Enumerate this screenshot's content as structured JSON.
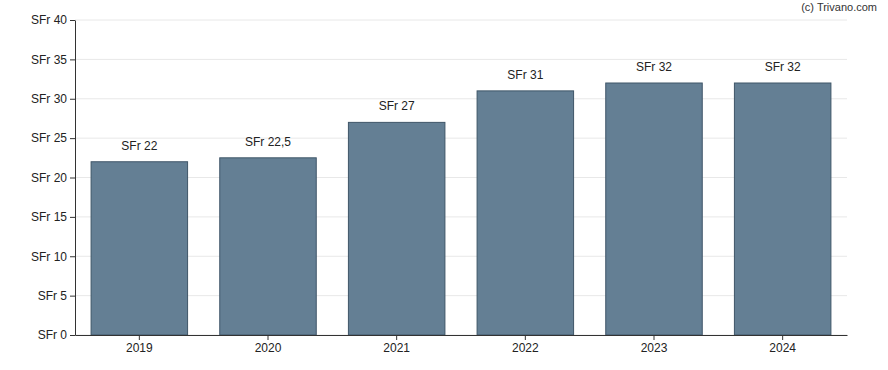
{
  "chart_data": {
    "type": "bar",
    "categories": [
      "2019",
      "2020",
      "2021",
      "2022",
      "2023",
      "2024"
    ],
    "values": [
      22,
      22.5,
      27,
      31,
      32,
      32
    ],
    "value_labels": [
      "SFr 22",
      "SFr 22,5",
      "SFr 27",
      "SFr 31",
      "SFr 32",
      "SFr 32"
    ],
    "data_labels": true,
    "color": "#647f94",
    "ylim": [
      0,
      40
    ],
    "yticks": [
      {
        "value": 0,
        "label": "SFr 0"
      },
      {
        "value": 5,
        "label": "SFr 5"
      },
      {
        "value": 10,
        "label": "SFr 10"
      },
      {
        "value": 15,
        "label": "SFr 15"
      },
      {
        "value": 20,
        "label": "SFr 20"
      },
      {
        "value": 25,
        "label": "SFr 25"
      },
      {
        "value": 30,
        "label": "SFr 30"
      },
      {
        "value": 35,
        "label": "SFr 35"
      },
      {
        "value": 40,
        "label": "SFr 40"
      }
    ],
    "grid": true,
    "annotations": [
      "(c) Trivano.com"
    ]
  }
}
